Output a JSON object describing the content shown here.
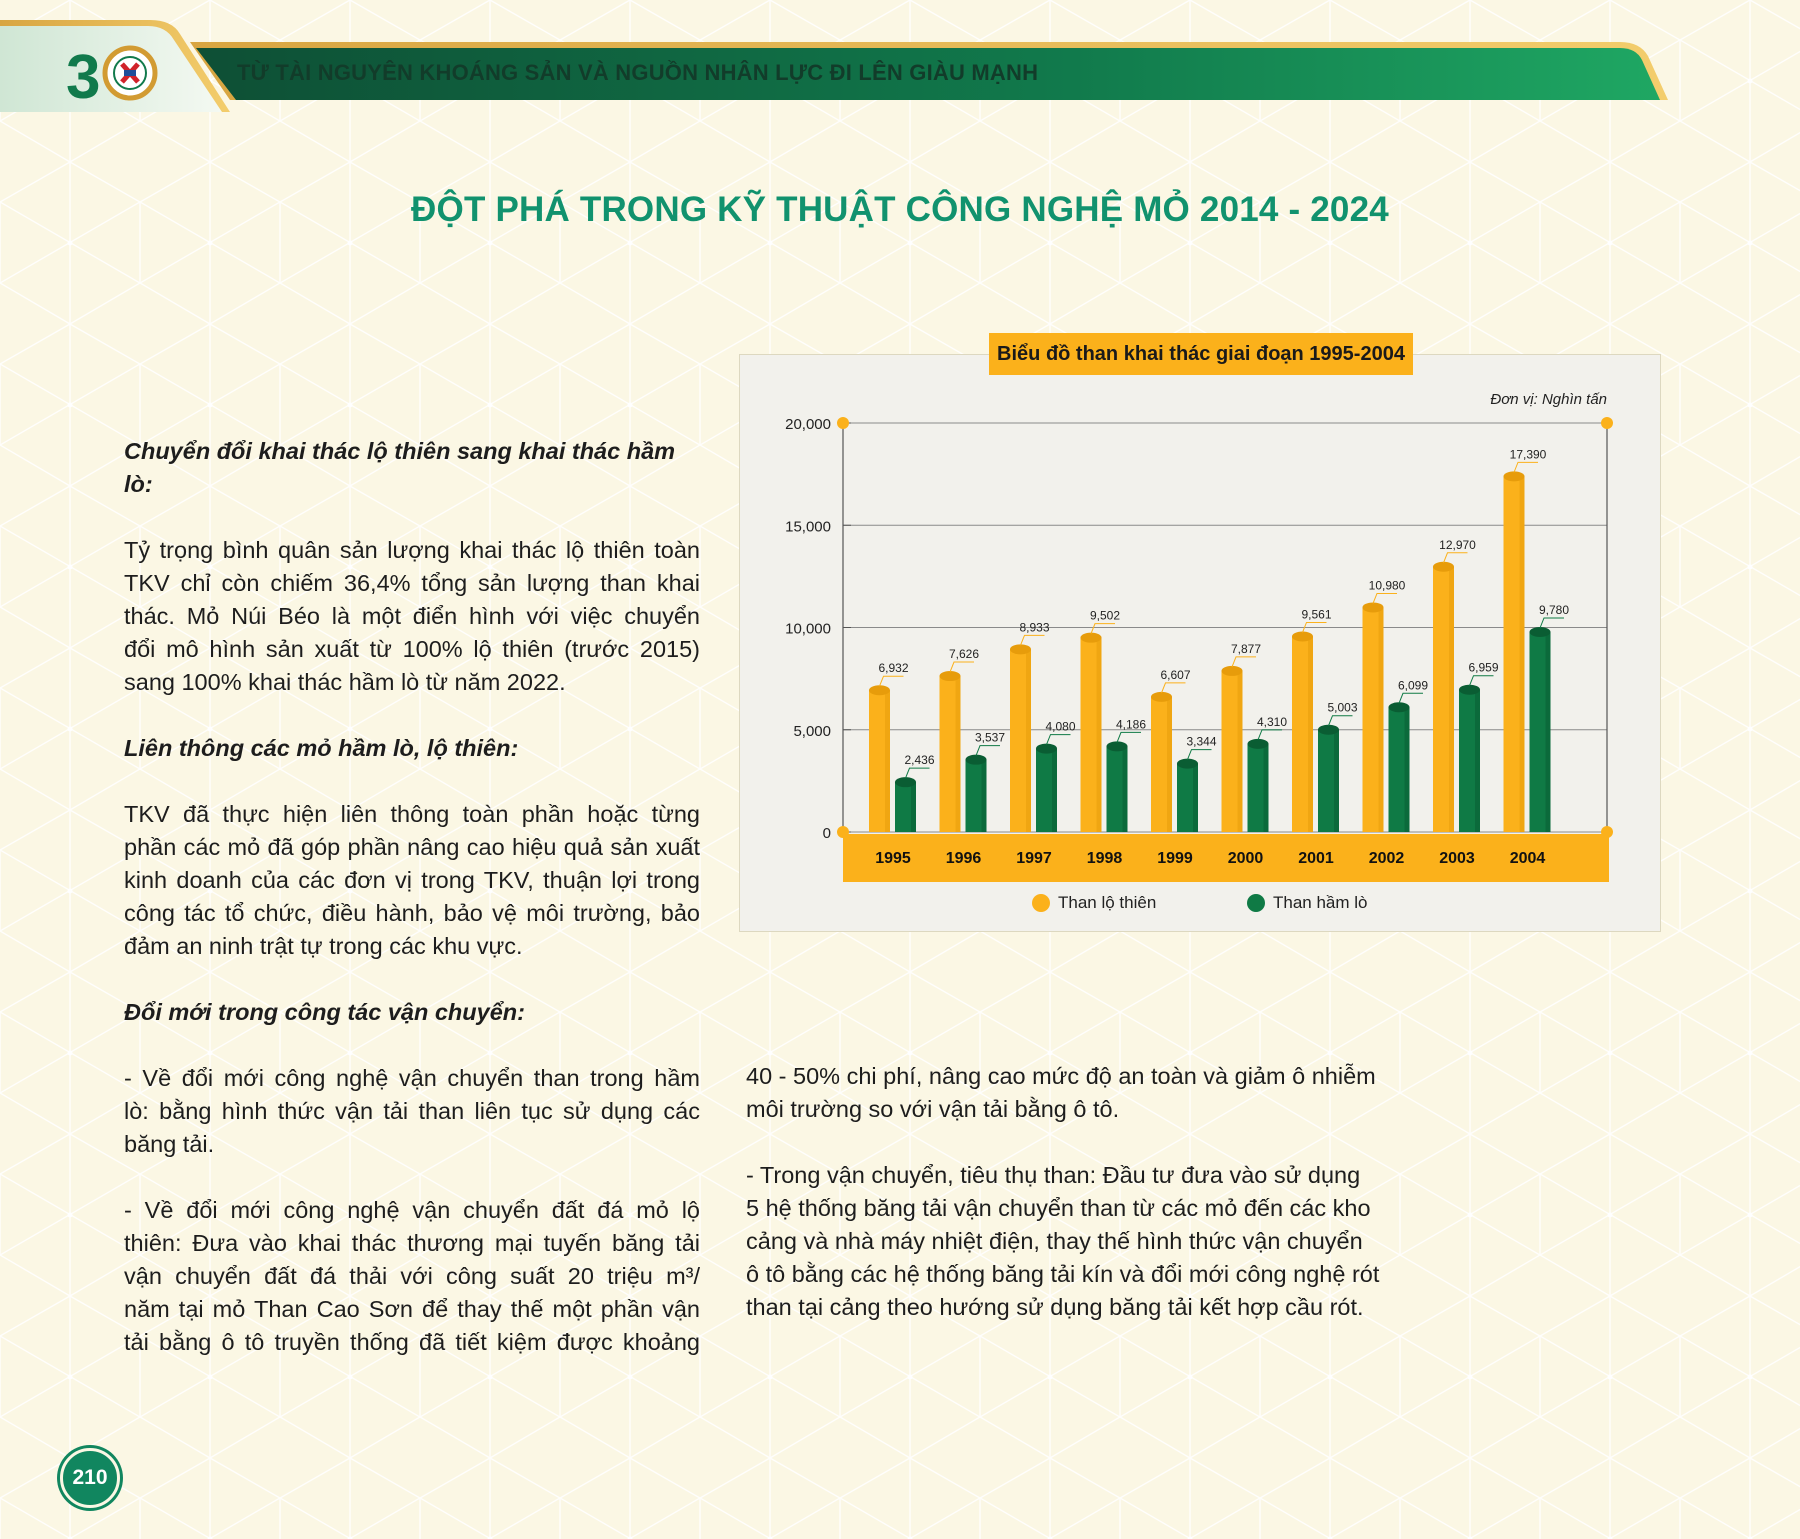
{
  "header": {
    "banner_text": "TỪ TÀI NGUYÊN KHOÁNG SẢN VÀ NGUỒN NHÂN LỰC ĐI LÊN GIÀU MẠNH",
    "logo_number": "30"
  },
  "page_title": "ĐỘT PHÁ TRONG KỸ THUẬT CÔNG NGHỆ MỎ 2014 - 2024",
  "left_column": {
    "s1_heading": "Chuyển đổi khai thác lộ thiên sang khai thác hầm lò:",
    "s1_lines": [
      "Tỷ trọng bình quân sản lượng khai thác lộ thiên toàn",
      "TKV chỉ còn chiếm 36,4% tổng sản lượng than khai",
      "thác. Mỏ Núi Béo là một điển hình với việc chuyển",
      "đổi mô hình sản xuất từ 100% lộ thiên (trước 2015)",
      "sang 100% khai thác hầm lò từ năm 2022."
    ],
    "s2_heading": "Liên thông các mỏ hầm lò, lộ thiên:",
    "s2_lines": [
      "TKV đã thực hiện liên thông toàn phần hoặc từng",
      "phần các mỏ đã góp phần nâng cao hiệu quả sản xuất",
      "kinh doanh của các đơn vị trong TKV, thuận lợi trong",
      "công tác tổ chức, điều hành, bảo vệ môi trường, bảo",
      "đảm an ninh trật tự trong các khu vực."
    ],
    "s3_heading": "Đổi mới trong công tác vận chuyển:",
    "s3_p1_lines": [
      "- Về đổi mới công nghệ vận chuyển than trong hầm",
      "lò: bằng hình thức vận tải than liên tục sử dụng các",
      "băng tải."
    ],
    "s3_p2_lines": [
      "- Về đổi mới công nghệ vận chuyển đất đá mỏ lộ",
      "thiên: Đưa vào khai thác thương mại tuyến băng tải",
      "vận chuyển đất đá thải với công suất 20 triệu m³/",
      "năm tại mỏ Than Cao Sơn để thay thế một phần vận",
      "tải bằng ô tô truyền thống đã tiết kiệm được khoảng"
    ]
  },
  "right_column": {
    "p1_lines": [
      "40 - 50% chi phí, nâng cao mức độ an toàn và giảm ô nhiễm",
      "môi trường so với vận tải bằng ô tô."
    ],
    "p2_lines": [
      "- Trong vận chuyển, tiêu thụ than: Đầu tư đưa vào sử dụng",
      "5 hệ thống băng tải vận chuyển than từ các mỏ đến các kho",
      "cảng và nhà máy nhiệt điện, thay thế hình thức vận chuyển",
      "ô tô bằng các hệ thống băng tải kín và đổi mới công nghệ rót",
      "than tại cảng theo hướng sử dụng băng tải kết hợp cầu rót."
    ]
  },
  "chart_data": {
    "type": "bar",
    "title": "Biểu đồ than khai thác giai đoạn 1995-2004",
    "unit": "Đơn vị: Nghìn tấn",
    "categories": [
      "1995",
      "1996",
      "1997",
      "1998",
      "1999",
      "2000",
      "2001",
      "2002",
      "2003",
      "2004"
    ],
    "series": [
      {
        "name": "Than lộ thiên",
        "color": "#fbb11b",
        "values": [
          6932,
          7626,
          8933,
          9502,
          6607,
          7877,
          9561,
          10980,
          12970,
          17390
        ],
        "labels": [
          "6,932",
          "7,626",
          "8,933",
          "9,502",
          "6,607",
          "7,877",
          "9,561",
          "10,980",
          "12,970",
          "17,390"
        ]
      },
      {
        "name": "Than hầm lò",
        "color": "#0f7a45",
        "values": [
          2436,
          3537,
          4080,
          4186,
          3344,
          4310,
          5003,
          6099,
          6959,
          9780
        ],
        "labels": [
          "2,436",
          "3,537",
          "4,080",
          "4,186",
          "3,344",
          "4,310",
          "5,003",
          "6,099",
          "6,959",
          "9,780"
        ]
      }
    ],
    "ylim": [
      0,
      20000
    ],
    "yticks": [
      0,
      5000,
      10000,
      15000,
      20000
    ],
    "ytick_labels": [
      "0",
      "5,000",
      "10,000",
      "15,000",
      "20,000"
    ],
    "grid": true,
    "legend": "bottom"
  },
  "page_number": "210"
}
